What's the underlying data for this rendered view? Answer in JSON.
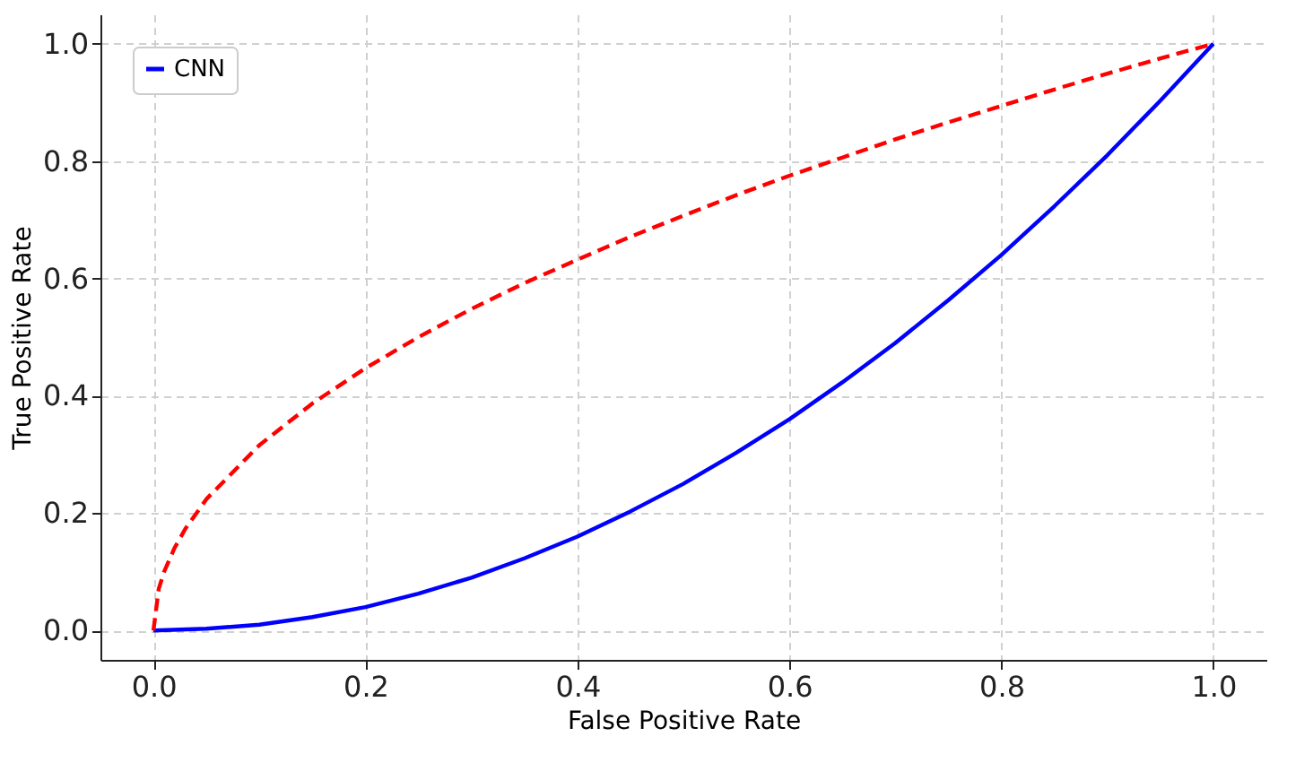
{
  "chart_data": {
    "type": "line",
    "xlabel": "False Positive Rate",
    "ylabel": "True Positive Rate",
    "xlim": [
      -0.05,
      1.05
    ],
    "ylim": [
      -0.05,
      1.05
    ],
    "xticks": [
      {
        "value": 0,
        "label": "0.0"
      },
      0.2,
      0.4,
      0.6,
      0.8,
      {
        "value": 1,
        "label": "1.0"
      }
    ],
    "yticks": [
      {
        "value": 0,
        "label": "0.0"
      },
      0.2,
      0.4,
      0.6,
      0.8,
      {
        "value": 1,
        "label": "1.0"
      }
    ],
    "grid": true,
    "legend": "top left",
    "series": [
      {
        "name": "CNN",
        "color": "#0000ff",
        "line_style": "solid",
        "x": [
          0,
          0.05,
          0.1,
          0.15,
          0.2,
          0.25,
          0.3,
          0.35,
          0.4,
          0.45,
          0.5,
          0.55,
          0.6,
          0.65,
          0.7,
          0.75,
          0.8,
          0.85,
          0.9,
          0.95,
          1
        ],
        "values": [
          0,
          0.003,
          0.01,
          0.023,
          0.04,
          0.063,
          0.09,
          0.123,
          0.16,
          0.203,
          0.25,
          0.303,
          0.36,
          0.423,
          0.49,
          0.563,
          0.64,
          0.723,
          0.81,
          0.903,
          1
        ]
      },
      {
        "color": "#ff0000",
        "line_style": "dashed",
        "x": [
          0,
          0.005,
          0.01,
          0.02,
          0.03,
          0.05,
          0.1,
          0.15,
          0.2,
          0.25,
          0.3,
          0.35,
          0.4,
          0.45,
          0.5,
          0.55,
          0.6,
          0.65,
          0.7,
          0.75,
          0.8,
          0.85,
          0.9,
          0.95,
          1
        ],
        "values": [
          0,
          0.071,
          0.1,
          0.141,
          0.173,
          0.224,
          0.316,
          0.387,
          0.447,
          0.5,
          0.548,
          0.592,
          0.632,
          0.671,
          0.707,
          0.742,
          0.775,
          0.806,
          0.837,
          0.866,
          0.894,
          0.922,
          0.949,
          0.975,
          1
        ]
      }
    ]
  }
}
